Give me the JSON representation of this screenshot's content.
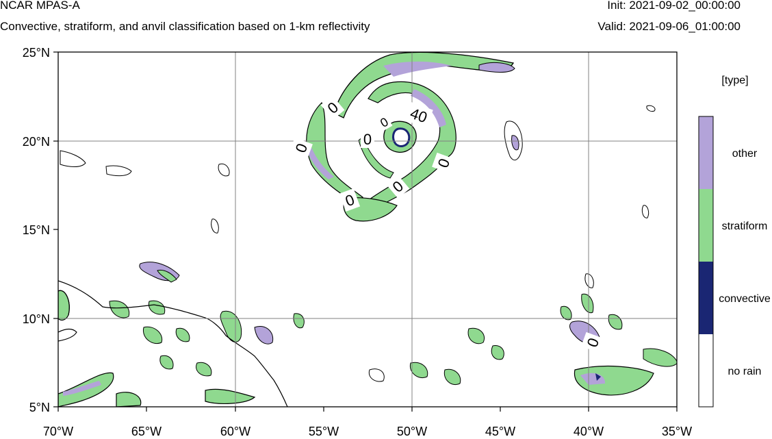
{
  "header": {
    "title": "NCAR MPAS-A",
    "subtitle": "Convective, stratiform, and anvil classification based on 1-km reflectivity",
    "init": "Init: 2021-09-02_00:00:00",
    "valid": "Valid: 2021-09-06_01:00:00"
  },
  "map": {
    "lat_labels": [
      "25°N",
      "20°N",
      "15°N",
      "10°N",
      "5°N"
    ],
    "lon_labels": [
      "70°W",
      "65°W",
      "60°W",
      "55°W",
      "50°W",
      "45°W",
      "40°W",
      "35°W"
    ],
    "contour_labels": [
      "0",
      "0",
      "0",
      "40",
      "0",
      "0",
      "0",
      "0",
      "0"
    ]
  },
  "legend": {
    "title": "[type]",
    "items": [
      {
        "label": "other",
        "color": "#b3a3d9"
      },
      {
        "label": "stratiform",
        "color": "#8fd98f"
      },
      {
        "label": "convective",
        "color": "#1a2673"
      },
      {
        "label": "no rain",
        "color": "#ffffff"
      }
    ]
  },
  "colors": {
    "coast": "#000000",
    "grid": "#808080"
  }
}
